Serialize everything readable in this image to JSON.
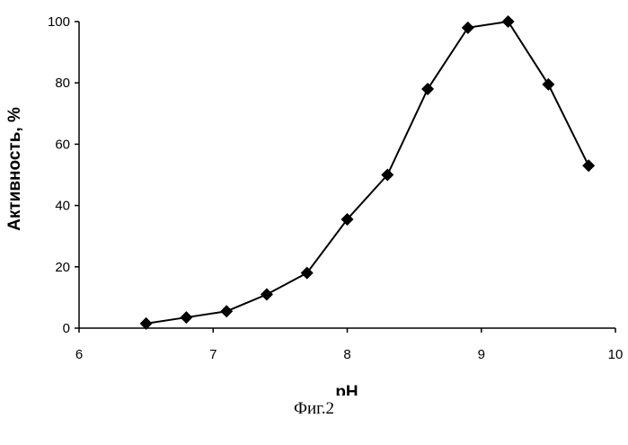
{
  "chart_data": {
    "type": "line",
    "title": "",
    "xlabel": "pH",
    "ylabel": "Активность, %",
    "xlim": [
      6,
      10
    ],
    "ylim": [
      0,
      100
    ],
    "x_ticks": [
      6,
      7,
      8,
      9,
      10
    ],
    "y_ticks": [
      0,
      20,
      40,
      60,
      80,
      100
    ],
    "grid": false,
    "legend": "none",
    "marker": "diamond",
    "line_color": "#000000",
    "marker_color": "#000000",
    "series": [
      {
        "x": [
          6.5,
          6.8,
          7.1,
          7.4,
          7.7,
          8.0,
          8.3,
          8.6,
          8.9,
          9.2,
          9.5,
          9.8
        ],
        "y": [
          1.5,
          3.5,
          5.5,
          11,
          18,
          35.5,
          50,
          78,
          98,
          100,
          79.5,
          53
        ]
      }
    ]
  },
  "caption": "Фиг.2"
}
